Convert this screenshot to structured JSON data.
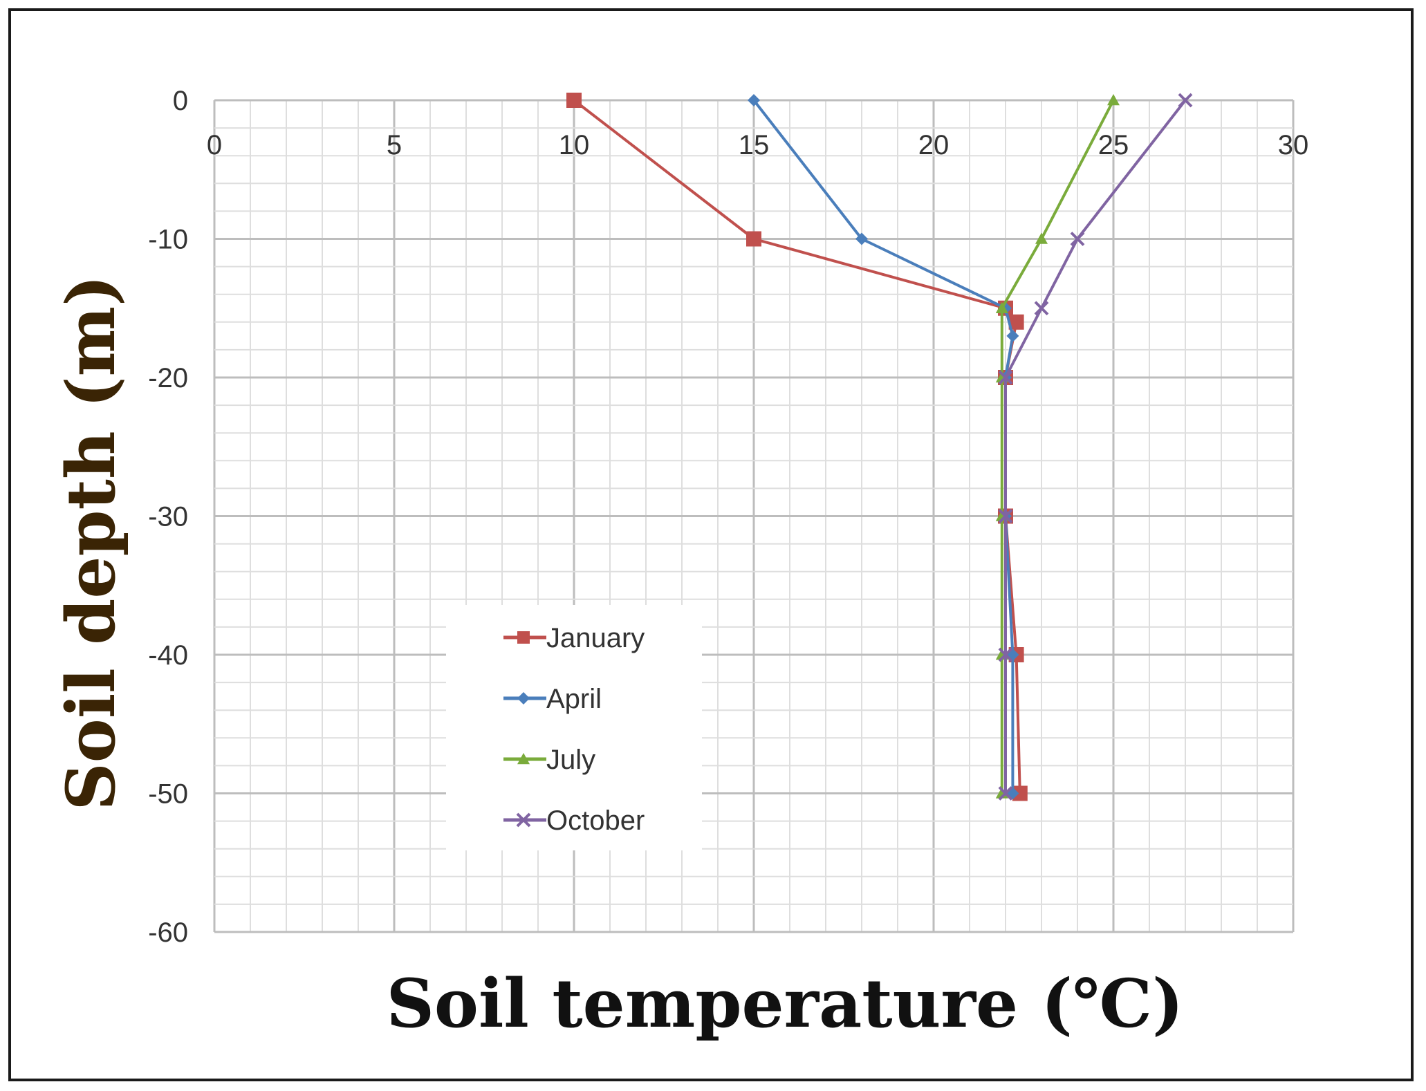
{
  "chart_data": {
    "type": "line",
    "title": "",
    "xlabel": "Soil temperature (℃)",
    "ylabel": "Soil depth (m)",
    "xlim": [
      0,
      30
    ],
    "ylim": [
      -60,
      0
    ],
    "x_ticks": [
      "0",
      "5",
      "10",
      "15",
      "20",
      "25",
      "30"
    ],
    "y_ticks": [
      "0",
      "-10",
      "-20",
      "-30",
      "-40",
      "-50",
      "-60"
    ],
    "grid": true,
    "legend_position": "bottom-left",
    "series": [
      {
        "name": "January",
        "color": "#c0504d",
        "marker": "square",
        "points": [
          [
            10,
            0
          ],
          [
            15,
            -10
          ],
          [
            22,
            -15
          ],
          [
            22.3,
            -16
          ],
          [
            22,
            -20
          ],
          [
            22,
            -30
          ],
          [
            22.3,
            -40
          ],
          [
            22.4,
            -50
          ]
        ]
      },
      {
        "name": "April",
        "color": "#4a7ebb",
        "marker": "diamond",
        "points": [
          [
            15,
            0
          ],
          [
            18,
            -10
          ],
          [
            22,
            -15
          ],
          [
            22.2,
            -17
          ],
          [
            22,
            -20
          ],
          [
            22,
            -30
          ],
          [
            22.2,
            -40
          ],
          [
            22.2,
            -50
          ]
        ]
      },
      {
        "name": "July",
        "color": "#7aab3b",
        "marker": "triangle",
        "points": [
          [
            25,
            0
          ],
          [
            23,
            -10
          ],
          [
            21.9,
            -15
          ],
          [
            21.9,
            -20
          ],
          [
            21.9,
            -30
          ],
          [
            21.9,
            -40
          ],
          [
            21.9,
            -50
          ]
        ]
      },
      {
        "name": "October",
        "color": "#8064a2",
        "marker": "x",
        "points": [
          [
            27,
            0
          ],
          [
            24,
            -10
          ],
          [
            23,
            -15
          ],
          [
            22,
            -20
          ],
          [
            22,
            -30
          ],
          [
            22,
            -40
          ],
          [
            22,
            -50
          ]
        ]
      }
    ]
  }
}
